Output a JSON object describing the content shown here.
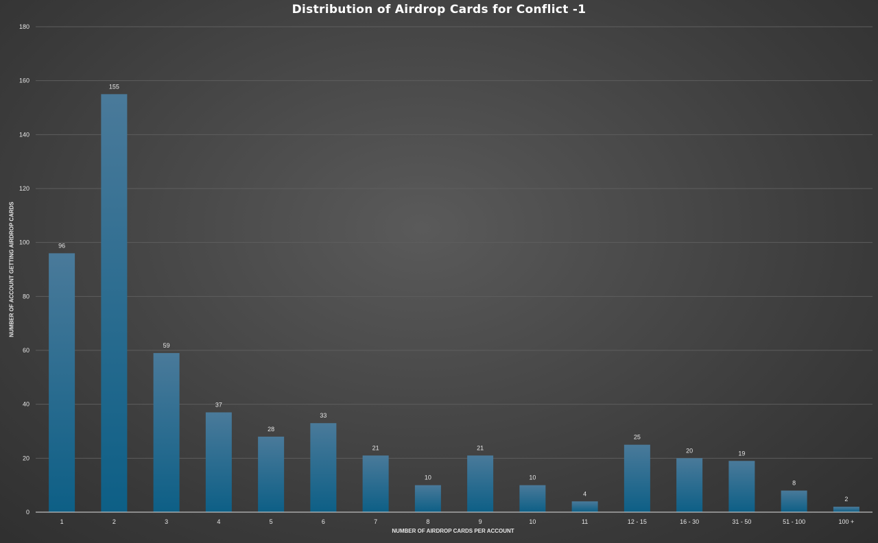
{
  "chart_data": {
    "type": "bar",
    "title": "Distribution of Airdrop Cards for Conflict -1",
    "xlabel": "NUMBER OF AIRDROP CARDS PER ACCOUNT",
    "ylabel": "NUMBER OF ACCOUNT GETTING AIRDROP CARDS",
    "categories": [
      "1",
      "2",
      "3",
      "4",
      "5",
      "6",
      "7",
      "8",
      "9",
      "10",
      "11",
      "12 - 15",
      "16 - 30",
      "31 - 50",
      "51 - 100",
      "100 +"
    ],
    "values": [
      96,
      155,
      59,
      37,
      28,
      33,
      21,
      10,
      21,
      10,
      4,
      25,
      20,
      19,
      8,
      2
    ],
    "ylim": [
      0,
      180
    ],
    "yticks": [
      0,
      20,
      40,
      60,
      80,
      100,
      120,
      140,
      160,
      180
    ],
    "grid": true,
    "data_labels": true,
    "colors": {
      "bar_top": "#4a7a9a",
      "bar_bottom": "#0d5f86",
      "gridline": "#5e5e5e",
      "axis": "#bfbfbf",
      "text": "#e6e6e6"
    }
  }
}
